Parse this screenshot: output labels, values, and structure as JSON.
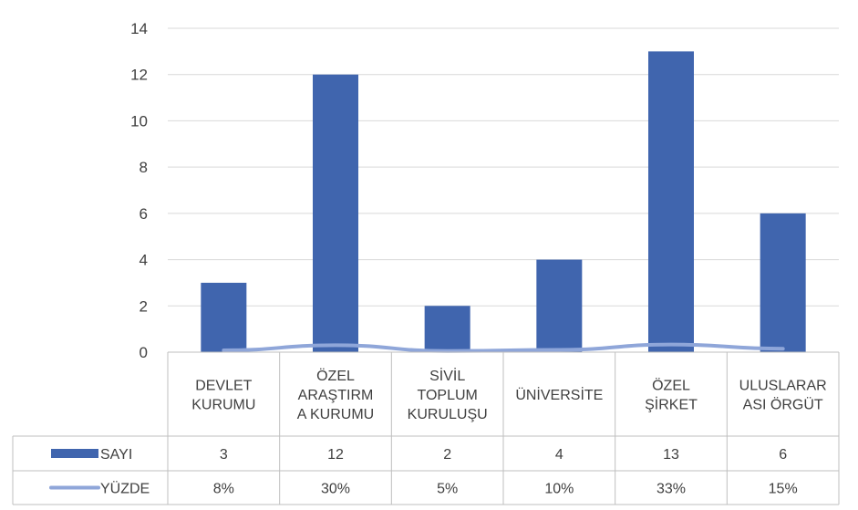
{
  "chart_data": {
    "type": "bar",
    "title": "",
    "categories": [
      [
        "DEVLET",
        "KURUMU"
      ],
      [
        "ÖZEL",
        "ARAŞTIRM",
        "A KURUMU"
      ],
      [
        "SİVİL",
        "TOPLUM",
        "KURULUŞU"
      ],
      [
        "ÜNİVERSİTE"
      ],
      [
        "ÖZEL",
        "ŞİRKET"
      ],
      [
        "ULUSLARAR",
        "ASI ÖRGÜT"
      ]
    ],
    "series": [
      {
        "name": "SAYI",
        "type": "bar",
        "color": "#4065AE",
        "values": [
          3,
          12,
          2,
          4,
          13,
          6
        ],
        "labels": [
          "3",
          "12",
          "2",
          "4",
          "13",
          "6"
        ]
      },
      {
        "name": "YÜZDE",
        "type": "line",
        "color": "#8FA6D9",
        "values": [
          0.08,
          0.3,
          0.05,
          0.1,
          0.33,
          0.15
        ],
        "labels": [
          "8%",
          "30%",
          "5%",
          "10%",
          "33%",
          "15%"
        ]
      }
    ],
    "yticks": [
      "0",
      "2",
      "4",
      "6",
      "8",
      "10",
      "12",
      "14"
    ],
    "ylim": [
      0,
      14
    ],
    "grid": true,
    "data_table": true
  }
}
